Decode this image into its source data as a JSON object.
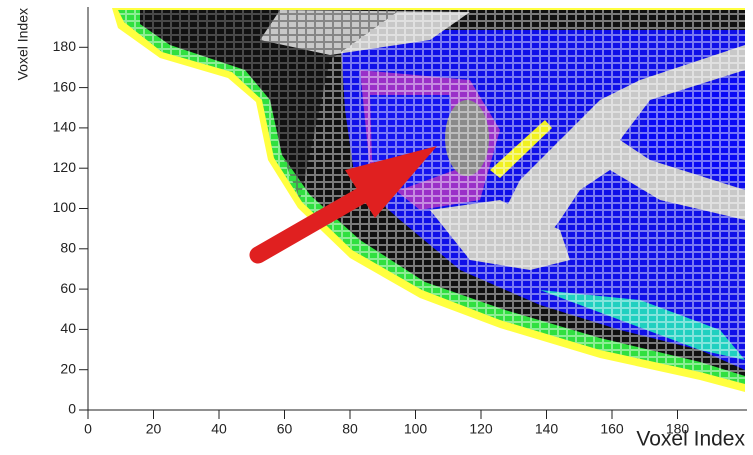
{
  "chart_data": {
    "type": "box2d",
    "x_label": "Voxel Index",
    "y_label": "Voxel Index",
    "xlim": [
      0,
      200
    ],
    "ylim": [
      0,
      200
    ],
    "xticks": [
      0,
      20,
      40,
      60,
      80,
      100,
      120,
      140,
      160,
      180
    ],
    "yticks": [
      0,
      20,
      40,
      60,
      80,
      100,
      120,
      140,
      160,
      180
    ]
  }
}
